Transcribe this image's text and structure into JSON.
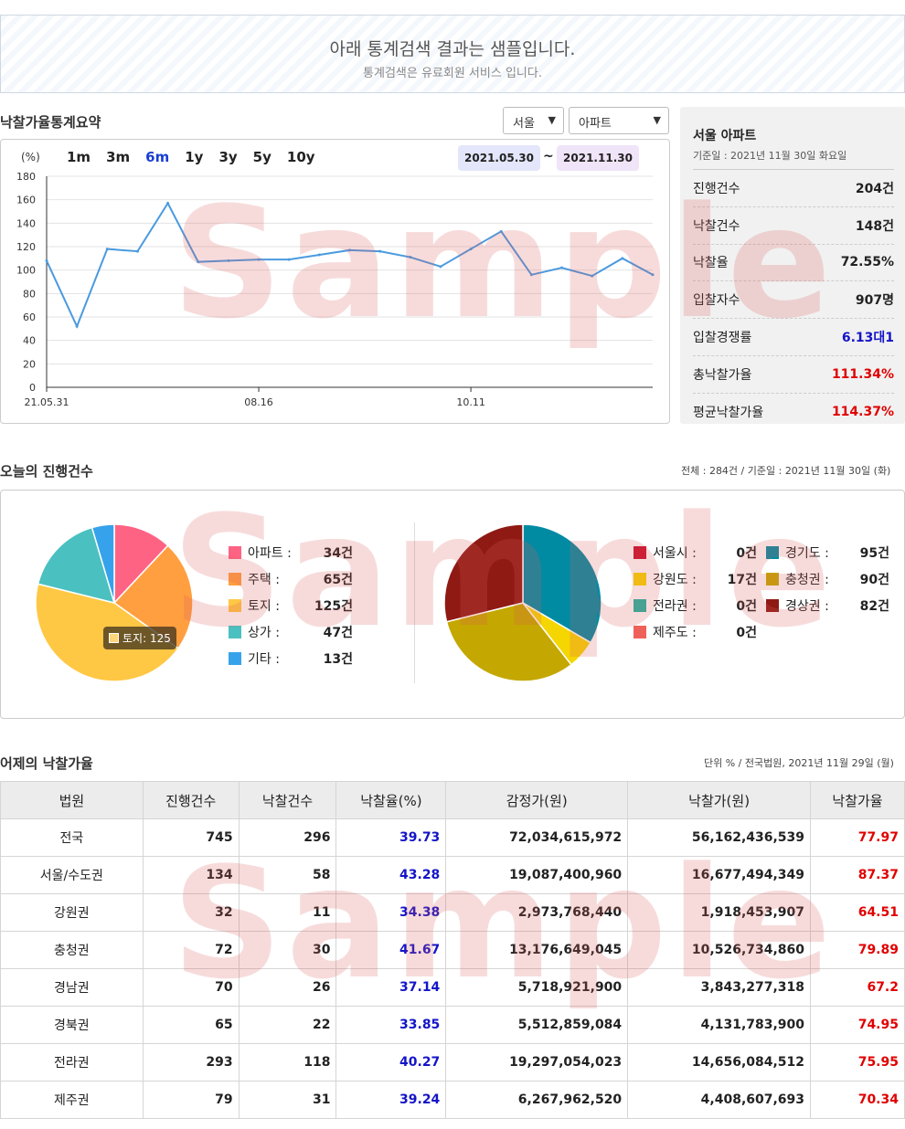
{
  "notice": {
    "title": "아래 통계검색 결과는 샘플입니다.",
    "subtitle": "통계검색은 유료회원 서비스 입니다."
  },
  "summary_section": {
    "title": "낙찰가율통계요약",
    "region_select": "서울",
    "type_select": "아파트",
    "unit": "(%)",
    "periods": [
      "1m",
      "3m",
      "6m",
      "1y",
      "3y",
      "5y",
      "10y"
    ],
    "active_period": "6m",
    "date_from": "2021.05.30",
    "tilde": "~",
    "date_to": "2021.11.30"
  },
  "chart_data": {
    "type": "line",
    "title": "",
    "xlabel": "",
    "ylabel": "(%)",
    "ylim": [
      0,
      180
    ],
    "yticks": [
      0,
      20,
      40,
      60,
      80,
      100,
      120,
      140,
      160,
      180
    ],
    "x_tick_labels": [
      {
        "index": 0,
        "label": "21.05.31"
      },
      {
        "index": 7,
        "label": "08.16"
      },
      {
        "index": 14,
        "label": "10.11"
      }
    ],
    "series": [
      {
        "values": [
          108,
          52,
          118,
          116,
          157,
          107,
          108,
          109,
          109,
          113,
          117,
          116,
          111,
          103,
          118,
          133,
          96,
          102,
          95,
          110,
          96
        ]
      }
    ],
    "grid": true,
    "color": "#4a9ae0"
  },
  "stats": {
    "title": "서울 아파트",
    "date": "기준일 : 2021년 11월 30일 화요일",
    "rows": [
      {
        "label": "진행건수",
        "value": "204건",
        "color": ""
      },
      {
        "label": "낙찰건수",
        "value": "148건",
        "color": ""
      },
      {
        "label": "낙찰율",
        "value": "72.55%",
        "color": ""
      },
      {
        "label": "입찰자수",
        "value": "907명",
        "color": ""
      },
      {
        "label": "입찰경쟁률",
        "value": "6.13대1",
        "color": "blue"
      },
      {
        "label": "총낙찰가율",
        "value": "111.34%",
        "color": "red"
      },
      {
        "label": "평균낙찰가율",
        "value": "114.37%",
        "color": "red"
      }
    ]
  },
  "today": {
    "title": "오늘의 진행건수",
    "meta": "전체 : 284건 / 기준일 : 2021년 11월 30일 (화)",
    "tooltip": "토지: 125",
    "pie1": [
      {
        "label": "아파트 :",
        "value": 34,
        "text": "34건",
        "color": "#ff6384"
      },
      {
        "label": "주택 :",
        "value": 65,
        "text": "65건",
        "color": "#ff9f40"
      },
      {
        "label": "토지 :",
        "value": 125,
        "text": "125건",
        "color": "#ffc844"
      },
      {
        "label": "상가 :",
        "value": 47,
        "text": "47건",
        "color": "#4bc0c0"
      },
      {
        "label": "기타 :",
        "value": 13,
        "text": "13건",
        "color": "#36a2eb"
      }
    ],
    "pie2": [
      {
        "label": "서울시 :",
        "value": 0,
        "text": "0건",
        "color": "#c8102e"
      },
      {
        "label": "경기도 :",
        "value": 95,
        "text": "95건",
        "color": "#008ba3"
      },
      {
        "label": "강원도 :",
        "value": 17,
        "text": "17건",
        "color": "#f5d600"
      },
      {
        "label": "충청권 :",
        "value": 90,
        "text": "90건",
        "color": "#c4a700"
      },
      {
        "label": "전라권 :",
        "value": 0,
        "text": "0건",
        "color": "#1fb5a2"
      },
      {
        "label": "경상권 :",
        "value": 82,
        "text": "82건",
        "color": "#8f1a14"
      },
      {
        "label": "제주도 :",
        "value": 0,
        "text": "0건",
        "color": "#f0605a"
      }
    ]
  },
  "yesterday": {
    "title": "어제의 낙찰가율",
    "meta": "단위 % / 전국법원, 2021년 11월 29일 (월)",
    "headers": [
      "법원",
      "진행건수",
      "낙찰건수",
      "낙찰율(%)",
      "감정가(원)",
      "낙찰가(원)",
      "낙찰가율"
    ],
    "rows": [
      [
        "전국",
        "745",
        "296",
        "39.73",
        "72,034,615,972",
        "56,162,436,539",
        "77.97"
      ],
      [
        "서울/수도권",
        "134",
        "58",
        "43.28",
        "19,087,400,960",
        "16,677,494,349",
        "87.37"
      ],
      [
        "강원권",
        "32",
        "11",
        "34.38",
        "2,973,768,440",
        "1,918,453,907",
        "64.51"
      ],
      [
        "충청권",
        "72",
        "30",
        "41.67",
        "13,176,649,045",
        "10,526,734,860",
        "79.89"
      ],
      [
        "경남권",
        "70",
        "26",
        "37.14",
        "5,718,921,900",
        "3,843,277,318",
        "67.2"
      ],
      [
        "경북권",
        "65",
        "22",
        "33.85",
        "5,512,859,084",
        "4,131,783,900",
        "74.95"
      ],
      [
        "전라권",
        "293",
        "118",
        "40.27",
        "19,297,054,023",
        "14,656,084,512",
        "75.95"
      ],
      [
        "제주권",
        "79",
        "31",
        "39.24",
        "6,267,962,520",
        "4,408,607,693",
        "70.34"
      ]
    ]
  },
  "watermark": "Sample"
}
